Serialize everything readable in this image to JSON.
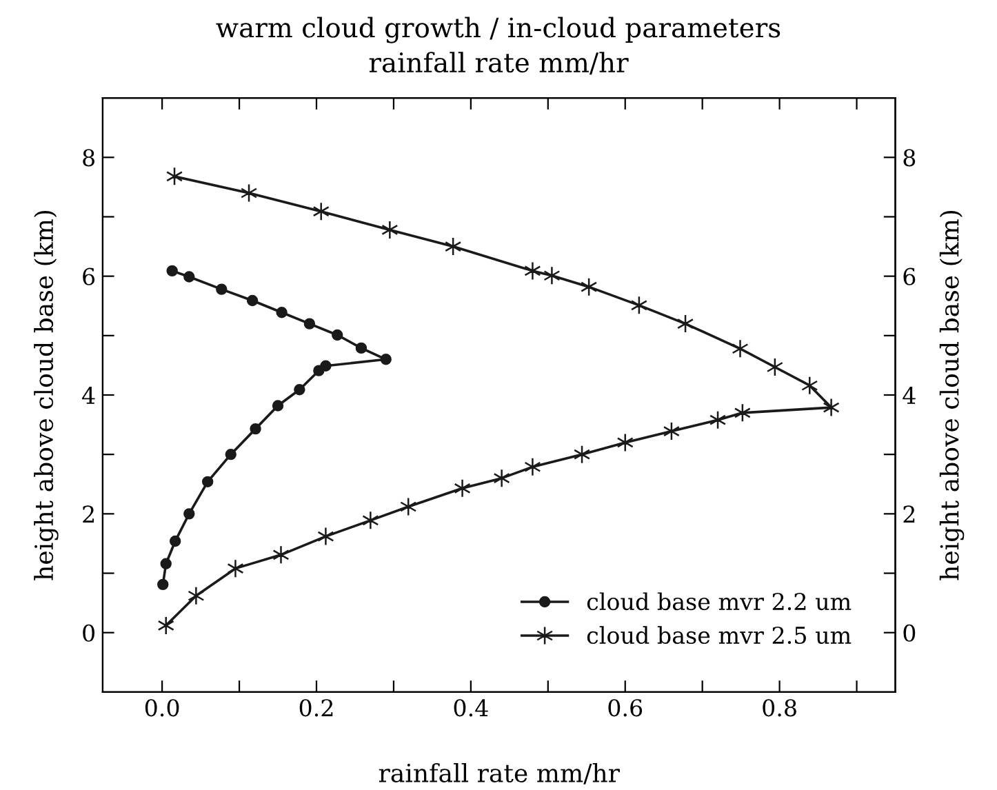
{
  "chart_data": {
    "type": "line",
    "title": "warm cloud growth / in-cloud parameters",
    "subtitle": "rainfall rate mm/hr",
    "xlabel": "rainfall rate mm/hr",
    "ylabel": "height above cloud base (km)",
    "y2label": "height above cloud base (km)",
    "xlim": [
      -0.077,
      0.95
    ],
    "ylim": [
      -1,
      9
    ],
    "y2lim": [
      -1,
      9
    ],
    "xticks": [
      {
        "value": 0,
        "label": "0.0"
      },
      {
        "value": 0.1,
        "label": null
      },
      {
        "value": 0.2,
        "label": "0.2"
      },
      {
        "value": 0.3,
        "label": null
      },
      {
        "value": 0.4,
        "label": "0.4"
      },
      {
        "value": 0.5,
        "label": null
      },
      {
        "value": 0.6,
        "label": "0.6"
      },
      {
        "value": 0.7,
        "label": null
      },
      {
        "value": 0.8,
        "label": "0.8"
      },
      {
        "value": 0.9,
        "label": null
      }
    ],
    "yticks": [
      0,
      {
        "value": 1,
        "label": null
      },
      2,
      {
        "value": 3,
        "label": null
      },
      4,
      {
        "value": 5,
        "label": null
      },
      6,
      {
        "value": 7,
        "label": null
      },
      8
    ],
    "y2ticks": [
      0,
      {
        "value": 1,
        "label": null
      },
      2,
      {
        "value": 3,
        "label": null
      },
      4,
      {
        "value": 5,
        "label": null
      },
      6,
      {
        "value": 7,
        "label": null
      },
      8
    ],
    "grid": false,
    "legend": "bottom right",
    "line_style": "solid",
    "series": [
      {
        "name": "cloud base mvr 2.2 um",
        "color": "#1a1a1a",
        "marker": "circle",
        "x": [
          0.001,
          0.005,
          0.017,
          0.035,
          0.059,
          0.089,
          0.121,
          0.15,
          0.178,
          0.203,
          0.212,
          0.29,
          0.258,
          0.227,
          0.191,
          0.155,
          0.117,
          0.077,
          0.035,
          0.013
        ],
        "values": [
          0.81,
          1.16,
          1.54,
          2.0,
          2.54,
          3.0,
          3.43,
          3.82,
          4.09,
          4.41,
          4.49,
          4.6,
          4.79,
          5.01,
          5.2,
          5.39,
          5.59,
          5.78,
          5.99,
          6.09
        ]
      },
      {
        "name": "cloud base mvr 2.5 um",
        "color": "#1a1a1a",
        "marker": "cross",
        "x": [
          0.005,
          0.044,
          0.095,
          0.154,
          0.212,
          0.27,
          0.319,
          0.389,
          0.44,
          0.48,
          0.544,
          0.6,
          0.66,
          0.72,
          0.752,
          0.867,
          0.839,
          0.794,
          0.749,
          0.678,
          0.618,
          0.553,
          0.505,
          0.48,
          0.377,
          0.295,
          0.206,
          0.1125,
          0.016
        ],
        "values": [
          0.12,
          0.62,
          1.08,
          1.31,
          1.62,
          1.89,
          2.12,
          2.43,
          2.6,
          2.79,
          3.0,
          3.2,
          3.39,
          3.58,
          3.7,
          3.79,
          4.16,
          4.47,
          4.78,
          5.2,
          5.51,
          5.82,
          6.01,
          6.09,
          6.5,
          6.78,
          7.09,
          7.4,
          7.68
        ]
      }
    ]
  }
}
